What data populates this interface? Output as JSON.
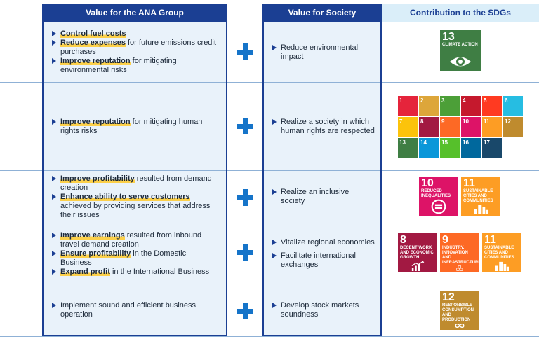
{
  "headers": {
    "ana": "Value for the ANA Group",
    "society": "Value for Society",
    "sdgs": "Contribution to the SDGs"
  },
  "rows": [
    {
      "ana": [
        {
          "hl": "Control fuel costs",
          "rest": ""
        },
        {
          "hl": "Reduce expenses",
          "rest": " for future emissions credit purchases"
        },
        {
          "hl": "Improve reputation",
          "rest": " for mitigating environmental risks"
        }
      ],
      "society": [
        "Reduce environmental impact"
      ]
    },
    {
      "ana": [
        {
          "hl": "Improve reputation",
          "rest": " for mitigating human rights risks"
        }
      ],
      "society": [
        "Realize a society in which human rights are respected"
      ]
    },
    {
      "ana": [
        {
          "hl": "Improve profitability",
          "rest": " resulted from demand creation"
        },
        {
          "hl": "Enhance ability to serve customers",
          "rest": " achieved by providing services that address their issues"
        }
      ],
      "society": [
        "Realize an inclusive society"
      ]
    },
    {
      "ana": [
        {
          "hl": "Improve earnings",
          "rest": " resulted from inbound travel demand creation"
        },
        {
          "hl": "Ensure profitability",
          "rest": " in the Domestic Business"
        },
        {
          "hl": "Expand profit",
          "rest": " in the International Business"
        }
      ],
      "society": [
        "Vitalize regional economies",
        "Facilitate international exchanges"
      ]
    },
    {
      "ana": [
        {
          "hl": "",
          "rest": "Implement sound and efficient business operation"
        }
      ],
      "society": [
        "Develop stock markets soundness"
      ]
    }
  ],
  "sdg_goals": {
    "g13": {
      "num": "13",
      "label": "CLIMATE ACTION",
      "color": "#3f7e44",
      "icon": "eye-globe-icon"
    },
    "g10": {
      "num": "10",
      "label": "REDUCED INEQUALITIES",
      "color": "#dd1367",
      "icon": "equality-icon"
    },
    "g11": {
      "num": "11",
      "label": "SUSTAINABLE CITIES AND COMMUNITIES",
      "color": "#fd9d24",
      "icon": "city-icon"
    },
    "g8": {
      "num": "8",
      "label": "DECENT WORK AND ECONOMIC GROWTH",
      "color": "#a21942",
      "icon": "growth-chart-icon"
    },
    "g9": {
      "num": "9",
      "label": "INDUSTRY, INNOVATION AND INFRASTRUCTURE",
      "color": "#fd6925",
      "icon": "cubes-icon"
    },
    "g12": {
      "num": "12",
      "label": "RESPONSIBLE CONSUMPTION AND PRODUCTION",
      "color": "#bf8b2e",
      "icon": "infinity-icon"
    }
  },
  "sdg_grid": [
    {
      "num": "1",
      "color": "#e5243b"
    },
    {
      "num": "2",
      "color": "#dda63a"
    },
    {
      "num": "3",
      "color": "#4c9f38"
    },
    {
      "num": "4",
      "color": "#c5192d"
    },
    {
      "num": "5",
      "color": "#ff3a21"
    },
    {
      "num": "6",
      "color": "#26bde2"
    },
    {
      "num": "7",
      "color": "#fcc30b"
    },
    {
      "num": "8",
      "color": "#a21942"
    },
    {
      "num": "9",
      "color": "#fd6925"
    },
    {
      "num": "10",
      "color": "#dd1367"
    },
    {
      "num": "11",
      "color": "#fd9d24"
    },
    {
      "num": "12",
      "color": "#bf8b2e"
    },
    {
      "num": "13",
      "color": "#3f7e44"
    },
    {
      "num": "14",
      "color": "#0a97d9"
    },
    {
      "num": "15",
      "color": "#56c02b"
    },
    {
      "num": "16",
      "color": "#00689d"
    },
    {
      "num": "17",
      "color": "#19486a"
    }
  ]
}
